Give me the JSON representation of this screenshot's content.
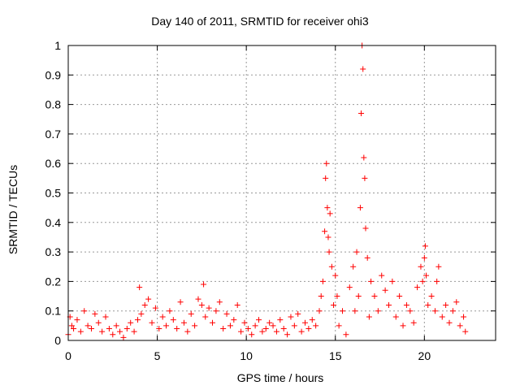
{
  "chart_data": {
    "type": "scatter",
    "title": "Day 140 of 2011, SRMTID for receiver ohi3",
    "xlabel": "GPS time / hours",
    "ylabel": "SRMTID / TECUs",
    "xlim": [
      0,
      24
    ],
    "ylim": [
      0,
      1
    ],
    "xticks": [
      "0",
      "5",
      "10",
      "15",
      "20"
    ],
    "xtick_values": [
      0,
      5,
      10,
      15,
      20
    ],
    "yticks": [
      "0",
      "0.1",
      "0.2",
      "0.3",
      "0.4",
      "0.5",
      "0.6",
      "0.7",
      "0.8",
      "0.9",
      "1"
    ],
    "ytick_values": [
      0,
      0.1,
      0.2,
      0.3,
      0.4,
      0.5,
      0.6,
      0.7,
      0.8,
      0.9,
      1.0
    ],
    "grid": true,
    "marker": "+",
    "series": [
      {
        "name": "SRMTID",
        "color": "#ff0000",
        "x": [
          0.0,
          0.1,
          0.2,
          0.3,
          0.5,
          0.7,
          0.9,
          1.1,
          1.3,
          1.5,
          1.7,
          1.9,
          2.1,
          2.3,
          2.5,
          2.7,
          2.9,
          3.1,
          3.3,
          3.5,
          3.7,
          3.9,
          4.0,
          4.1,
          4.3,
          4.5,
          4.7,
          4.9,
          5.1,
          5.3,
          5.5,
          5.7,
          5.9,
          6.1,
          6.3,
          6.5,
          6.7,
          6.9,
          7.1,
          7.3,
          7.5,
          7.6,
          7.7,
          7.9,
          8.1,
          8.3,
          8.5,
          8.7,
          8.9,
          9.1,
          9.3,
          9.5,
          9.7,
          9.9,
          10.1,
          10.3,
          10.5,
          10.7,
          10.9,
          11.1,
          11.3,
          11.5,
          11.7,
          11.9,
          12.1,
          12.3,
          12.5,
          12.7,
          12.9,
          13.1,
          13.3,
          13.5,
          13.7,
          13.9,
          14.1,
          14.2,
          14.3,
          14.4,
          14.45,
          14.5,
          14.55,
          14.6,
          14.65,
          14.7,
          14.8,
          14.9,
          15.0,
          15.1,
          15.2,
          15.4,
          15.6,
          15.8,
          16.0,
          16.1,
          16.2,
          16.3,
          16.4,
          16.45,
          16.5,
          16.55,
          16.6,
          16.65,
          16.7,
          16.8,
          16.9,
          17.0,
          17.2,
          17.4,
          17.6,
          17.8,
          18.0,
          18.2,
          18.4,
          18.6,
          18.8,
          19.0,
          19.2,
          19.4,
          19.6,
          19.8,
          19.9,
          20.0,
          20.05,
          20.1,
          20.2,
          20.4,
          20.6,
          20.7,
          20.8,
          21.0,
          21.2,
          21.4,
          21.6,
          21.8,
          22.0,
          22.2,
          22.3
        ],
        "y": [
          0.02,
          0.08,
          0.05,
          0.04,
          0.07,
          0.03,
          0.1,
          0.05,
          0.04,
          0.09,
          0.06,
          0.03,
          0.08,
          0.04,
          0.02,
          0.05,
          0.03,
          0.01,
          0.04,
          0.06,
          0.03,
          0.07,
          0.18,
          0.09,
          0.12,
          0.14,
          0.06,
          0.11,
          0.04,
          0.08,
          0.05,
          0.1,
          0.07,
          0.04,
          0.13,
          0.06,
          0.03,
          0.09,
          0.05,
          0.14,
          0.12,
          0.19,
          0.08,
          0.11,
          0.06,
          0.1,
          0.13,
          0.04,
          0.09,
          0.05,
          0.07,
          0.12,
          0.03,
          0.06,
          0.04,
          0.02,
          0.05,
          0.07,
          0.03,
          0.04,
          0.06,
          0.05,
          0.03,
          0.07,
          0.04,
          0.02,
          0.08,
          0.05,
          0.09,
          0.03,
          0.06,
          0.04,
          0.07,
          0.05,
          0.1,
          0.15,
          0.2,
          0.37,
          0.55,
          0.6,
          0.45,
          0.35,
          0.3,
          0.43,
          0.25,
          0.12,
          0.22,
          0.15,
          0.05,
          0.1,
          0.02,
          0.18,
          0.25,
          0.1,
          0.3,
          0.15,
          0.45,
          0.77,
          1.0,
          0.92,
          0.62,
          0.55,
          0.38,
          0.28,
          0.08,
          0.2,
          0.15,
          0.1,
          0.22,
          0.17,
          0.12,
          0.2,
          0.08,
          0.15,
          0.05,
          0.12,
          0.1,
          0.06,
          0.18,
          0.25,
          0.2,
          0.28,
          0.32,
          0.22,
          0.12,
          0.15,
          0.1,
          0.2,
          0.25,
          0.08,
          0.12,
          0.06,
          0.1,
          0.13,
          0.05,
          0.08,
          0.03
        ]
      }
    ]
  }
}
